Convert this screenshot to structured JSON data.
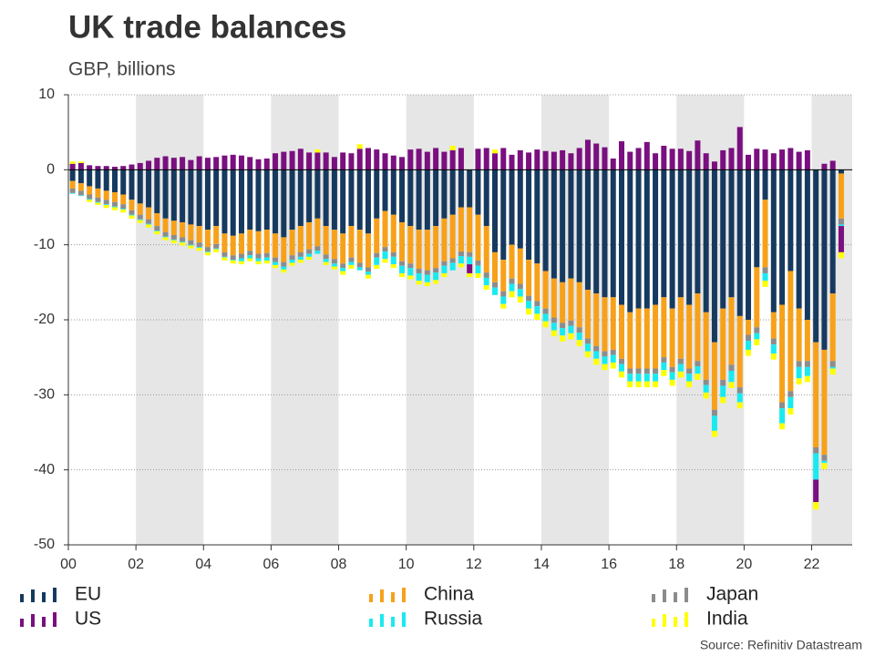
{
  "chart_data": {
    "type": "stacked_bar",
    "title": "UK trade balances",
    "subtitle": "GBP, billions",
    "source": "Source: Refinitiv Datastream",
    "xlim": [
      2000,
      2023.2
    ],
    "xticks": [
      {
        "value": 2000,
        "label": "00"
      },
      {
        "value": 2002,
        "label": "02"
      },
      {
        "value": 2004,
        "label": "04"
      },
      {
        "value": 2006,
        "label": "06"
      },
      {
        "value": 2008,
        "label": "08"
      },
      {
        "value": 2010,
        "label": "10"
      },
      {
        "value": 2012,
        "label": "12"
      },
      {
        "value": 2014,
        "label": "14"
      },
      {
        "value": 2016,
        "label": "16"
      },
      {
        "value": 2018,
        "label": "18"
      },
      {
        "value": 2020,
        "label": "20"
      },
      {
        "value": 2022,
        "label": "22"
      }
    ],
    "ylim": [
      -50,
      10
    ],
    "yticks": [
      10,
      0,
      -10,
      -20,
      -30,
      -40,
      -50
    ],
    "grid": true,
    "shading": true,
    "x": [
      2000.125,
      2000.375,
      2000.625,
      2000.875,
      2001.125,
      2001.375,
      2001.625,
      2001.875,
      2002.125,
      2002.375,
      2002.625,
      2002.875,
      2003.125,
      2003.375,
      2003.625,
      2003.875,
      2004.125,
      2004.375,
      2004.625,
      2004.875,
      2005.125,
      2005.375,
      2005.625,
      2005.875,
      2006.125,
      2006.375,
      2006.625,
      2006.875,
      2007.125,
      2007.375,
      2007.625,
      2007.875,
      2008.125,
      2008.375,
      2008.625,
      2008.875,
      2009.125,
      2009.375,
      2009.625,
      2009.875,
      2010.125,
      2010.375,
      2010.625,
      2010.875,
      2011.125,
      2011.375,
      2011.625,
      2011.875,
      2012.125,
      2012.375,
      2012.625,
      2012.875,
      2013.125,
      2013.375,
      2013.625,
      2013.875,
      2014.125,
      2014.375,
      2014.625,
      2014.875,
      2015.125,
      2015.375,
      2015.625,
      2015.875,
      2016.125,
      2016.375,
      2016.625,
      2016.875,
      2017.125,
      2017.375,
      2017.625,
      2017.875,
      2018.125,
      2018.375,
      2018.625,
      2018.875,
      2019.125,
      2019.375,
      2019.625,
      2019.875,
      2020.125,
      2020.375,
      2020.625,
      2020.875,
      2021.125,
      2021.375,
      2021.625,
      2021.875,
      2022.125,
      2022.375,
      2022.625,
      2022.875
    ],
    "series": [
      {
        "name": "EU",
        "color": "#163a5f",
        "values": [
          -1.5,
          -1.8,
          -2.2,
          -2.5,
          -2.8,
          -3.0,
          -3.3,
          -4.0,
          -4.5,
          -5.0,
          -5.8,
          -6.5,
          -6.8,
          -7.0,
          -7.3,
          -7.5,
          -8.0,
          -7.5,
          -8.5,
          -8.8,
          -8.5,
          -8.0,
          -8.2,
          -8.0,
          -8.5,
          -9.0,
          -8.0,
          -7.5,
          -7.0,
          -6.5,
          -7.5,
          -8.0,
          -8.5,
          -7.5,
          -8.0,
          -8.5,
          -6.5,
          -5.5,
          -6.0,
          -7.0,
          -7.5,
          -8.0,
          -8.0,
          -7.5,
          -6.5,
          -6.0,
          -5.0,
          -5.0,
          -6.0,
          -7.5,
          -11.0,
          -12.0,
          -10.0,
          -10.5,
          -12.0,
          -12.5,
          -13.5,
          -14.5,
          -15.0,
          -14.5,
          -15.0,
          -16.0,
          -16.5,
          -17.0,
          -17.0,
          -18.0,
          -19.0,
          -18.5,
          -18.5,
          -18.0,
          -17.0,
          -18.5,
          -17.0,
          -18.0,
          -16.5,
          -19.0,
          -23.0,
          -18.5,
          -17.0,
          -19.5,
          -20.0,
          -13.0,
          -4.0,
          -19.0,
          -18.0,
          -13.5,
          -18.5,
          -20.0,
          -23.0,
          -24.0,
          -16.5,
          -0.5
        ]
      },
      {
        "name": "China",
        "color": "#f7a11a",
        "values": [
          -1.0,
          -1.0,
          -1.1,
          -1.2,
          -1.2,
          -1.3,
          -1.3,
          -1.4,
          -1.5,
          -1.6,
          -1.7,
          -1.8,
          -1.9,
          -2.0,
          -2.1,
          -2.2,
          -2.3,
          -2.4,
          -2.5,
          -2.6,
          -2.7,
          -2.8,
          -3.0,
          -3.1,
          -3.2,
          -3.3,
          -3.4,
          -3.5,
          -3.6,
          -3.7,
          -3.8,
          -3.9,
          -4.0,
          -4.2,
          -4.4,
          -4.5,
          -4.6,
          -4.8,
          -5.0,
          -5.2,
          -5.0,
          -5.2,
          -5.4,
          -5.6,
          -5.7,
          -5.8,
          -5.9,
          -6.0,
          -6.1,
          -6.2,
          -4.0,
          -4.2,
          -4.5,
          -4.7,
          -4.8,
          -5.0,
          -5.0,
          -5.2,
          -5.4,
          -5.6,
          -6.0,
          -6.5,
          -7.0,
          -7.2,
          -7.0,
          -7.2,
          -7.5,
          -8.0,
          -8.0,
          -8.5,
          -8.0,
          -7.8,
          -8.2,
          -8.5,
          -9.0,
          -9.0,
          -9.0,
          -9.5,
          -9.0,
          -9.5,
          -2.0,
          -8.0,
          -9.0,
          -3.5,
          -13.0,
          -16.0,
          -7.0,
          -5.5,
          -14.0,
          -14.0,
          -9.0,
          -6.0
        ]
      },
      {
        "name": "Japan",
        "color": "#8c8c8c",
        "values": [
          -0.6,
          -0.6,
          -0.6,
          -0.6,
          -0.6,
          -0.6,
          -0.6,
          -0.6,
          -0.6,
          -0.6,
          -0.6,
          -0.6,
          -0.6,
          -0.6,
          -0.6,
          -0.6,
          -0.6,
          -0.6,
          -0.6,
          -0.6,
          -0.6,
          -0.6,
          -0.6,
          -0.6,
          -0.6,
          -0.6,
          -0.6,
          -0.6,
          -0.6,
          -0.6,
          -0.6,
          -0.6,
          -0.6,
          -0.6,
          -0.6,
          -0.6,
          -0.6,
          -0.6,
          -0.6,
          -0.6,
          -0.6,
          -0.6,
          -0.6,
          -0.6,
          -0.6,
          -0.6,
          -0.6,
          -0.6,
          -0.7,
          -0.7,
          -0.7,
          -0.7,
          -0.7,
          -0.7,
          -0.7,
          -0.7,
          -0.7,
          -0.7,
          -0.7,
          -0.7,
          -0.7,
          -0.7,
          -0.7,
          -0.7,
          -0.7,
          -0.7,
          -0.7,
          -0.7,
          -0.7,
          -0.7,
          -0.7,
          -0.7,
          -0.7,
          -0.7,
          -0.7,
          -0.7,
          -0.8,
          -0.8,
          -0.8,
          -0.8,
          -0.8,
          -0.8,
          -0.8,
          -0.8,
          -0.8,
          -0.8,
          -0.8,
          -0.8,
          -0.8,
          -0.8,
          -0.8,
          -0.8
        ]
      },
      {
        "name": "Russia",
        "color": "#19eaf0",
        "values": [
          -0.1,
          -0.1,
          -0.1,
          -0.1,
          -0.1,
          -0.1,
          -0.1,
          -0.1,
          -0.1,
          -0.1,
          -0.1,
          -0.1,
          -0.1,
          -0.1,
          -0.1,
          -0.1,
          -0.1,
          -0.1,
          -0.1,
          -0.1,
          -0.4,
          -0.4,
          -0.4,
          -0.4,
          -0.4,
          -0.4,
          -0.4,
          -0.4,
          -0.4,
          -0.4,
          -0.4,
          -0.4,
          -0.4,
          -0.4,
          -0.4,
          -0.4,
          -1.0,
          -1.0,
          -1.0,
          -1.0,
          -1.0,
          -1.0,
          -1.0,
          -1.0,
          -1.0,
          -1.0,
          -1.0,
          -1.0,
          -1.0,
          -1.0,
          -1.0,
          -1.0,
          -1.0,
          -1.0,
          -1.0,
          -1.0,
          -1.0,
          -1.0,
          -1.0,
          -1.0,
          -1.0,
          -1.0,
          -1.0,
          -1.0,
          -1.0,
          -1.0,
          -1.0,
          -1.0,
          -1.0,
          -1.0,
          -1.0,
          -1.0,
          -1.0,
          -1.0,
          -1.0,
          -1.0,
          -2.0,
          -1.5,
          -1.5,
          -1.2,
          -1.2,
          -0.8,
          -1.0,
          -1.2,
          -2.0,
          -1.5,
          -1.5,
          -1.2,
          -3.5,
          -0.3,
          -0.2,
          -0.2
        ]
      },
      {
        "name": "US",
        "color": "#7a0f7f",
        "values": [
          0.8,
          0.9,
          0.6,
          0.5,
          0.5,
          0.4,
          0.5,
          0.7,
          0.9,
          1.2,
          1.6,
          1.8,
          1.6,
          1.7,
          1.3,
          1.8,
          1.6,
          1.7,
          1.9,
          2.0,
          1.9,
          1.7,
          1.4,
          1.5,
          2.2,
          2.4,
          2.5,
          2.8,
          2.3,
          2.3,
          2.3,
          1.7,
          2.3,
          2.2,
          2.8,
          2.9,
          2.7,
          2.2,
          1.9,
          1.7,
          2.7,
          2.8,
          2.4,
          2.9,
          2.4,
          2.6,
          2.9,
          -1.2,
          2.8,
          2.9,
          2.2,
          2.9,
          2.0,
          2.6,
          2.3,
          2.7,
          2.5,
          2.4,
          2.6,
          2.2,
          2.9,
          4.0,
          3.5,
          3.0,
          1.5,
          3.8,
          2.4,
          2.9,
          3.7,
          2.2,
          3.2,
          2.8,
          2.8,
          2.5,
          3.9,
          2.2,
          1.1,
          2.6,
          2.9,
          5.7,
          2.0,
          2.8,
          2.7,
          2.2,
          2.7,
          2.9,
          2.4,
          2.6,
          -3.0,
          0.8,
          1.2,
          -3.5
        ]
      },
      {
        "name": "India",
        "color": "#ffff00",
        "values": [
          0.3,
          0.2,
          -0.3,
          -0.3,
          -0.4,
          -0.4,
          -0.4,
          -0.4,
          -0.4,
          -0.4,
          -0.4,
          -0.4,
          -0.4,
          -0.4,
          -0.4,
          -0.4,
          -0.4,
          -0.4,
          -0.4,
          -0.4,
          -0.4,
          -0.4,
          -0.4,
          -0.4,
          -0.4,
          -0.4,
          -0.4,
          -0.4,
          -0.4,
          0.4,
          -0.4,
          -0.4,
          -0.5,
          -0.5,
          0.6,
          -0.5,
          -0.5,
          -0.5,
          -0.5,
          -0.5,
          -0.5,
          -0.5,
          -0.5,
          -0.5,
          -0.5,
          0.6,
          -0.5,
          -0.5,
          -0.6,
          -0.6,
          0.5,
          -0.6,
          -0.8,
          -0.8,
          -0.8,
          -0.8,
          -0.8,
          -0.8,
          -0.8,
          -0.8,
          -0.8,
          -0.8,
          -0.8,
          -0.8,
          -0.8,
          -0.8,
          -0.8,
          -0.8,
          -0.8,
          -0.8,
          -0.8,
          -0.8,
          -0.8,
          -0.8,
          -0.8,
          -0.8,
          -0.8,
          -0.8,
          -0.8,
          -0.8,
          -0.8,
          -0.8,
          -0.8,
          -0.8,
          -0.8,
          -0.8,
          -0.8,
          -0.8,
          -1.0,
          -0.8,
          -0.8,
          -0.8
        ]
      }
    ]
  }
}
